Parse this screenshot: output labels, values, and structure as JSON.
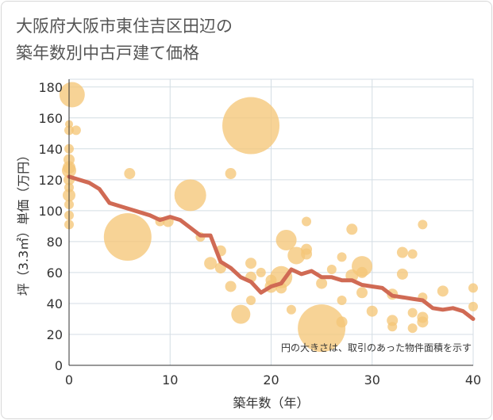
{
  "chart_data": {
    "type": "scatter",
    "title_lines": [
      "大阪府大阪市東住吉区田辺の",
      "築年数別中古戸建て価格"
    ],
    "xlabel": "築年数（年）",
    "ylabel": "坪（3.3㎡）単価（万円）",
    "xlim": [
      0,
      40
    ],
    "ylim": [
      0,
      185
    ],
    "xticks": [
      "0",
      "10",
      "20",
      "30",
      "40"
    ],
    "yticks": [
      "0",
      "20",
      "40",
      "60",
      "80",
      "100",
      "120",
      "140",
      "160",
      "180"
    ],
    "note": "円の大きさは、取引のあった物件面積を示す",
    "colors": {
      "bubble": "#f5c679",
      "trend": "#d06a54",
      "grid": "#d4dde4"
    },
    "bubbles": [
      {
        "x": 0.3,
        "y": 175,
        "s": 16
      },
      {
        "x": 0,
        "y": 156,
        "s": 5
      },
      {
        "x": 0,
        "y": 152,
        "s": 6
      },
      {
        "x": 0.7,
        "y": 152,
        "s": 6
      },
      {
        "x": 0,
        "y": 140,
        "s": 6
      },
      {
        "x": 0,
        "y": 133,
        "s": 7
      },
      {
        "x": 0,
        "y": 128,
        "s": 8
      },
      {
        "x": 0,
        "y": 126,
        "s": 9
      },
      {
        "x": 0,
        "y": 120,
        "s": 7
      },
      {
        "x": 0,
        "y": 115,
        "s": 6
      },
      {
        "x": 0,
        "y": 110,
        "s": 8
      },
      {
        "x": 0,
        "y": 104,
        "s": 6
      },
      {
        "x": 0,
        "y": 97,
        "s": 6
      },
      {
        "x": 0,
        "y": 91,
        "s": 6
      },
      {
        "x": 6,
        "y": 124,
        "s": 7
      },
      {
        "x": 5.8,
        "y": 83,
        "s": 30
      },
      {
        "x": 9,
        "y": 93,
        "s": 6
      },
      {
        "x": 9.8,
        "y": 93,
        "s": 7
      },
      {
        "x": 12,
        "y": 110,
        "s": 20
      },
      {
        "x": 13,
        "y": 83,
        "s": 6
      },
      {
        "x": 14,
        "y": 66,
        "s": 8
      },
      {
        "x": 15,
        "y": 74,
        "s": 7
      },
      {
        "x": 15,
        "y": 63,
        "s": 7
      },
      {
        "x": 16,
        "y": 124,
        "s": 7
      },
      {
        "x": 16,
        "y": 51,
        "s": 7
      },
      {
        "x": 17,
        "y": 33,
        "s": 12
      },
      {
        "x": 18,
        "y": 155,
        "s": 36
      },
      {
        "x": 18,
        "y": 66,
        "s": 7
      },
      {
        "x": 18,
        "y": 57,
        "s": 7
      },
      {
        "x": 18,
        "y": 42,
        "s": 6
      },
      {
        "x": 19,
        "y": 60,
        "s": 6
      },
      {
        "x": 20,
        "y": 55,
        "s": 7
      },
      {
        "x": 20,
        "y": 51,
        "s": 8
      },
      {
        "x": 21,
        "y": 57,
        "s": 14
      },
      {
        "x": 21,
        "y": 50,
        "s": 7
      },
      {
        "x": 21.5,
        "y": 81,
        "s": 13
      },
      {
        "x": 22,
        "y": 36,
        "s": 6
      },
      {
        "x": 22.5,
        "y": 71,
        "s": 11
      },
      {
        "x": 23.5,
        "y": 93,
        "s": 6
      },
      {
        "x": 23.5,
        "y": 75,
        "s": 7
      },
      {
        "x": 23.5,
        "y": 72,
        "s": 7
      },
      {
        "x": 25,
        "y": 24,
        "s": 30
      },
      {
        "x": 25,
        "y": 53,
        "s": 7
      },
      {
        "x": 26,
        "y": 62,
        "s": 6
      },
      {
        "x": 27,
        "y": 70,
        "s": 6
      },
      {
        "x": 27,
        "y": 42,
        "s": 6
      },
      {
        "x": 27,
        "y": 28,
        "s": 7
      },
      {
        "x": 28,
        "y": 88,
        "s": 7
      },
      {
        "x": 28,
        "y": 58,
        "s": 8
      },
      {
        "x": 29,
        "y": 64,
        "s": 13
      },
      {
        "x": 29,
        "y": 60,
        "s": 7
      },
      {
        "x": 29,
        "y": 47,
        "s": 7
      },
      {
        "x": 30,
        "y": 35,
        "s": 7
      },
      {
        "x": 32,
        "y": 46,
        "s": 7
      },
      {
        "x": 32,
        "y": 29,
        "s": 7
      },
      {
        "x": 32,
        "y": 25,
        "s": 6
      },
      {
        "x": 33,
        "y": 73,
        "s": 7
      },
      {
        "x": 33,
        "y": 59,
        "s": 7
      },
      {
        "x": 34,
        "y": 72,
        "s": 6
      },
      {
        "x": 34,
        "y": 34,
        "s": 6
      },
      {
        "x": 34,
        "y": 24,
        "s": 6
      },
      {
        "x": 35,
        "y": 91,
        "s": 6
      },
      {
        "x": 35,
        "y": 44,
        "s": 6
      },
      {
        "x": 35,
        "y": 31,
        "s": 7
      },
      {
        "x": 35,
        "y": 28,
        "s": 7
      },
      {
        "x": 37,
        "y": 48,
        "s": 7
      },
      {
        "x": 40,
        "y": 50,
        "s": 6
      },
      {
        "x": 40,
        "y": 38,
        "s": 6
      }
    ],
    "trend": {
      "x": [
        0,
        1,
        2,
        3,
        4,
        5,
        6,
        7,
        8,
        9,
        10,
        11,
        12,
        13,
        14,
        15,
        16,
        17,
        18,
        19,
        20,
        21,
        22,
        23,
        24,
        25,
        26,
        27,
        28,
        29,
        30,
        31,
        32,
        33,
        34,
        35,
        36,
        37,
        38,
        39,
        40
      ],
      "y": [
        122,
        120,
        118,
        114,
        105,
        103,
        101,
        99,
        97,
        94,
        96,
        94,
        89,
        84,
        84,
        67,
        63,
        57,
        54,
        47,
        51,
        53,
        62,
        59,
        61,
        57,
        57,
        55,
        55,
        52,
        51,
        50,
        45,
        44,
        43,
        42,
        37,
        36,
        37,
        35,
        30
      ]
    }
  }
}
